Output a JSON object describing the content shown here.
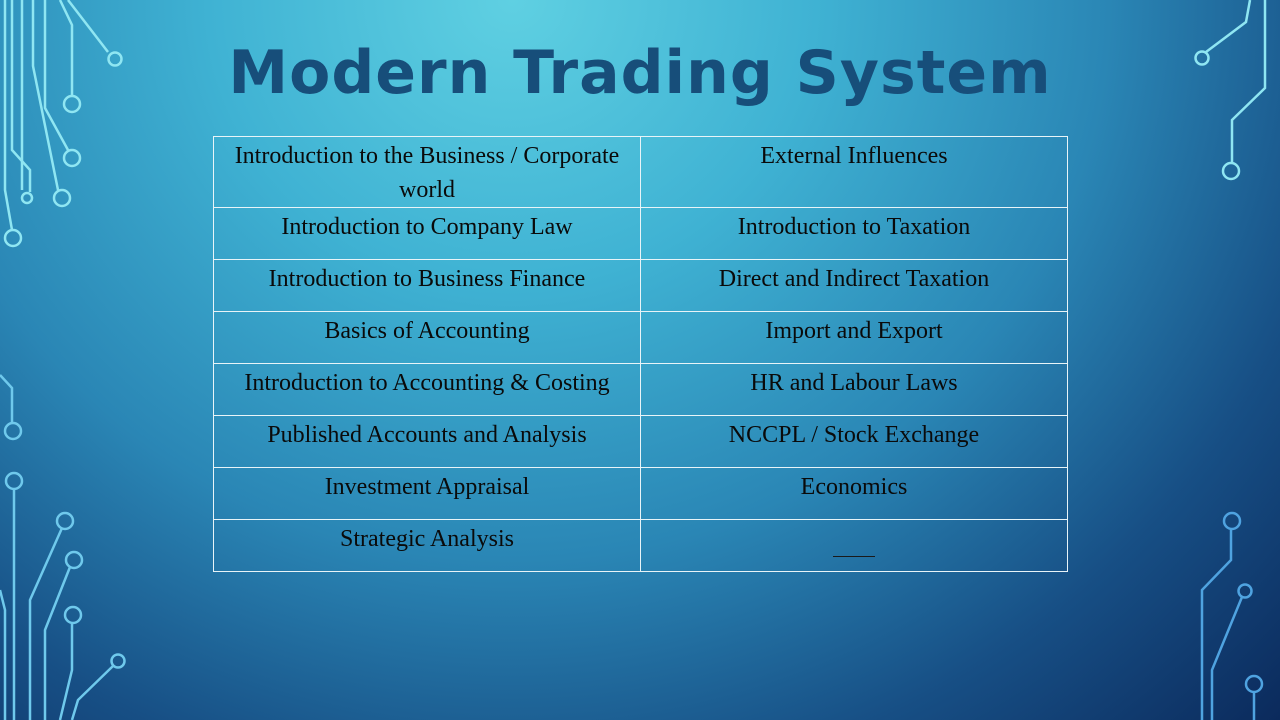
{
  "slide": {
    "title": "Modern Trading System"
  },
  "table": {
    "rows": [
      {
        "left": "Introduction to the Business / Corporate world",
        "right": "External Influences"
      },
      {
        "left": "Introduction to Company Law",
        "right": "Introduction to Taxation"
      },
      {
        "left": "Introduction to Business Finance",
        "right": "Direct and Indirect Taxation"
      },
      {
        "left": "Basics of Accounting",
        "right": "Import and Export"
      },
      {
        "left": "Introduction to Accounting & Costing",
        "right": "HR and Labour Laws"
      },
      {
        "left": "Published Accounts and Analysis",
        "right": "NCCPL / Stock Exchange"
      },
      {
        "left": "Investment Appraisal",
        "right": "Economics"
      },
      {
        "left": "Strategic Analysis",
        "right": ""
      }
    ]
  },
  "colors": {
    "title": "#174e7a",
    "circuit_light": "#7fe3f0",
    "circuit_dark": "#4fa3d8"
  }
}
